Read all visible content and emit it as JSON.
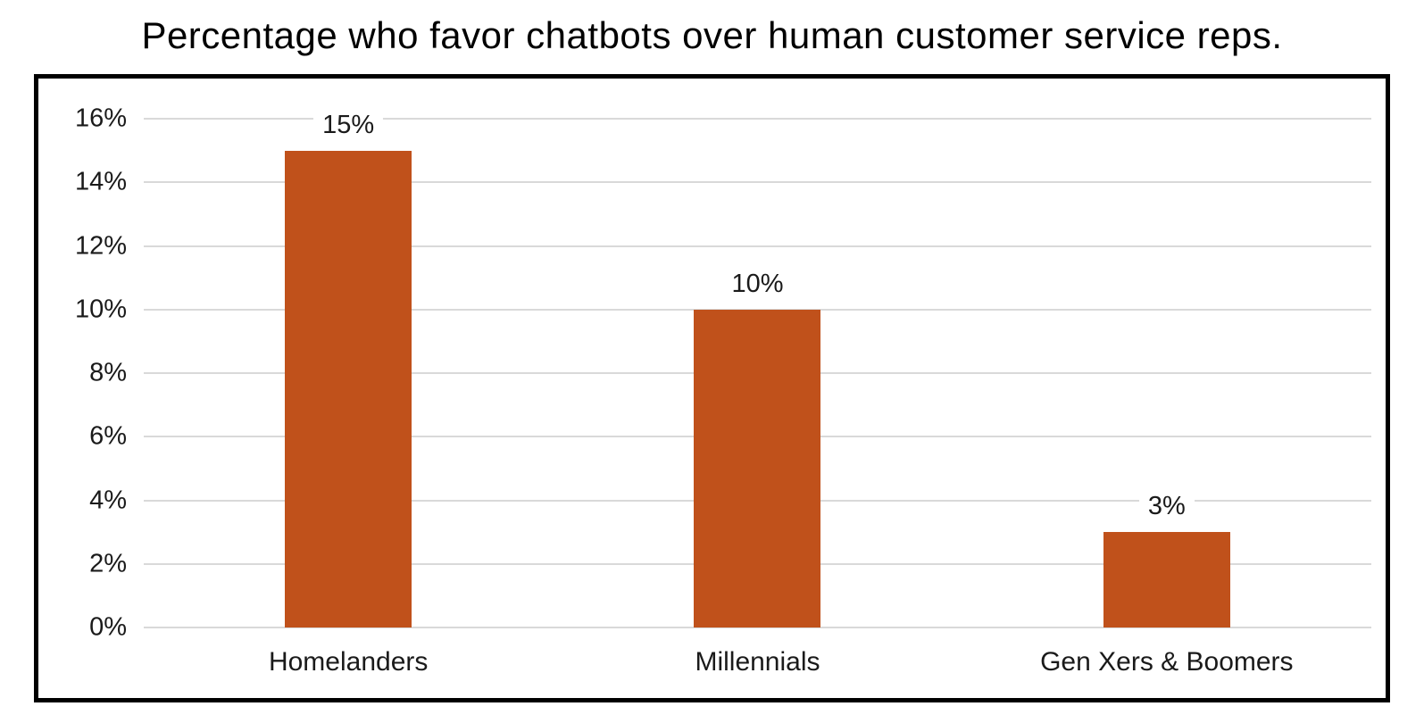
{
  "chart_data": {
    "type": "bar",
    "title": "Percentage who favor chatbots over human customer service reps.",
    "categories": [
      "Homelanders",
      "Millennials",
      "Gen Xers & Boomers"
    ],
    "values": [
      15,
      10,
      3
    ],
    "data_labels": [
      "15%",
      "10%",
      "3%"
    ],
    "y_ticks": [
      "0%",
      "2%",
      "4%",
      "6%",
      "8%",
      "10%",
      "12%",
      "14%",
      "16%"
    ],
    "y_tick_values": [
      0,
      2,
      4,
      6,
      8,
      10,
      12,
      14,
      16
    ],
    "ylim": [
      0,
      16
    ],
    "xlabel": "",
    "ylabel": "",
    "grid": "horizontal",
    "legend": "none",
    "colors": {
      "bar": "#C0511B",
      "gridline": "#D9D9D9",
      "frame_border": "#000000",
      "title_text": "#000000",
      "axis_text": "#1A1A1A",
      "label_background": "#FFFFFF",
      "background": "#FFFFFF"
    }
  }
}
